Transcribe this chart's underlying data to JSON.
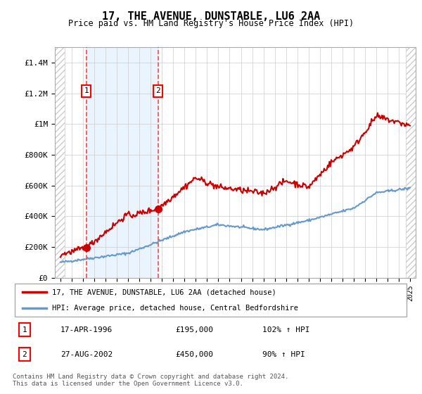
{
  "title": "17, THE AVENUE, DUNSTABLE, LU6 2AA",
  "subtitle": "Price paid vs. HM Land Registry's House Price Index (HPI)",
  "sale1_date": 1996.29,
  "sale1_price": 195000,
  "sale1_label": "1",
  "sale2_date": 2002.65,
  "sale2_price": 450000,
  "sale2_label": "2",
  "hpi_line_color": "#6699cc",
  "price_line_color": "#cc0000",
  "dashed_line_color": "#ff4444",
  "shaded_region_color": "#ddeeff",
  "background_color": "#ffffff",
  "grid_color": "#cccccc",
  "ylim": [
    0,
    1500000
  ],
  "xlim": [
    1993.5,
    2025.5
  ],
  "legend_label_price": "17, THE AVENUE, DUNSTABLE, LU6 2AA (detached house)",
  "legend_label_hpi": "HPI: Average price, detached house, Central Bedfordshire",
  "footer": "Contains HM Land Registry data © Crown copyright and database right 2024.\nThis data is licensed under the Open Government Licence v3.0.",
  "yticks": [
    0,
    200000,
    400000,
    600000,
    800000,
    1000000,
    1200000,
    1400000
  ],
  "ytick_labels": [
    "£0",
    "£200K",
    "£400K",
    "£600K",
    "£800K",
    "£1M",
    "£1.2M",
    "£1.4M"
  ],
  "xticks": [
    1994,
    1995,
    1996,
    1997,
    1998,
    1999,
    2000,
    2001,
    2002,
    2003,
    2004,
    2005,
    2006,
    2007,
    2008,
    2009,
    2010,
    2011,
    2012,
    2013,
    2014,
    2015,
    2016,
    2017,
    2018,
    2019,
    2020,
    2021,
    2022,
    2023,
    2024,
    2025
  ]
}
